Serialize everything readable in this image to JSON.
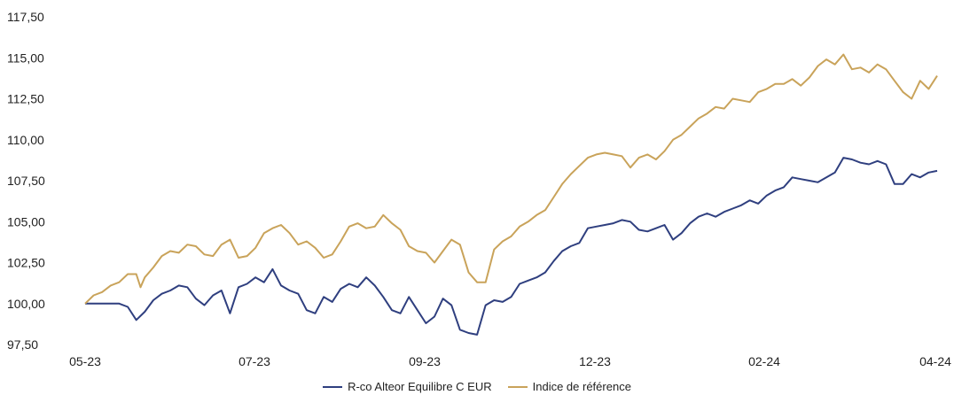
{
  "chart_data": {
    "type": "line",
    "title": "",
    "xlabel": "",
    "ylabel": "",
    "x_tick_labels": [
      "05-23",
      "07-23",
      "09-23",
      "12-23",
      "02-24",
      "04-24"
    ],
    "y_tick_labels": [
      "97,50",
      "100,00",
      "102,50",
      "105,00",
      "107,50",
      "110,00",
      "112,50",
      "115,00",
      "117,50"
    ],
    "y_ticks": [
      97.5,
      100,
      102.5,
      105,
      107.5,
      110,
      112.5,
      115,
      117.5
    ],
    "ylim": [
      97.5,
      117.5
    ],
    "x_range": [
      "05-23",
      "04-24"
    ],
    "grid": false,
    "legend_position": "bottom-center",
    "series": [
      {
        "name": "R-co Alteor Equilibre C EUR",
        "color": "#2f3f7f",
        "points": [
          [
            0,
            100.0
          ],
          [
            0.02,
            100.0
          ],
          [
            0.04,
            100.0
          ],
          [
            0.05,
            99.8
          ],
          [
            0.06,
            99.0
          ],
          [
            0.07,
            99.5
          ],
          [
            0.08,
            100.2
          ],
          [
            0.09,
            100.6
          ],
          [
            0.1,
            100.8
          ],
          [
            0.11,
            101.1
          ],
          [
            0.12,
            101.0
          ],
          [
            0.13,
            100.3
          ],
          [
            0.14,
            99.9
          ],
          [
            0.15,
            100.5
          ],
          [
            0.16,
            100.8
          ],
          [
            0.17,
            99.4
          ],
          [
            0.18,
            101.0
          ],
          [
            0.19,
            101.2
          ],
          [
            0.2,
            101.6
          ],
          [
            0.21,
            101.3
          ],
          [
            0.22,
            102.1
          ],
          [
            0.23,
            101.1
          ],
          [
            0.24,
            100.8
          ],
          [
            0.25,
            100.6
          ],
          [
            0.26,
            99.6
          ],
          [
            0.27,
            99.4
          ],
          [
            0.28,
            100.4
          ],
          [
            0.29,
            100.1
          ],
          [
            0.3,
            100.9
          ],
          [
            0.31,
            101.2
          ],
          [
            0.32,
            101.0
          ],
          [
            0.33,
            101.6
          ],
          [
            0.34,
            101.1
          ],
          [
            0.35,
            100.4
          ],
          [
            0.36,
            99.6
          ],
          [
            0.37,
            99.4
          ],
          [
            0.38,
            100.4
          ],
          [
            0.39,
            99.6
          ],
          [
            0.4,
            98.8
          ],
          [
            0.41,
            99.2
          ],
          [
            0.42,
            100.3
          ],
          [
            0.43,
            99.9
          ],
          [
            0.44,
            98.4
          ],
          [
            0.45,
            98.2
          ],
          [
            0.46,
            98.1
          ],
          [
            0.47,
            99.9
          ],
          [
            0.48,
            100.2
          ],
          [
            0.49,
            100.1
          ],
          [
            0.5,
            100.4
          ],
          [
            0.51,
            101.2
          ],
          [
            0.52,
            101.4
          ],
          [
            0.53,
            101.6
          ],
          [
            0.54,
            101.9
          ],
          [
            0.55,
            102.6
          ],
          [
            0.56,
            103.2
          ],
          [
            0.57,
            103.5
          ],
          [
            0.58,
            103.7
          ],
          [
            0.59,
            104.6
          ],
          [
            0.6,
            104.7
          ],
          [
            0.61,
            104.8
          ],
          [
            0.62,
            104.9
          ],
          [
            0.63,
            105.1
          ],
          [
            0.64,
            105.0
          ],
          [
            0.65,
            104.5
          ],
          [
            0.66,
            104.4
          ],
          [
            0.67,
            104.6
          ],
          [
            0.68,
            104.8
          ],
          [
            0.69,
            103.9
          ],
          [
            0.7,
            104.3
          ],
          [
            0.71,
            104.9
          ],
          [
            0.72,
            105.3
          ],
          [
            0.73,
            105.5
          ],
          [
            0.74,
            105.3
          ],
          [
            0.75,
            105.6
          ],
          [
            0.76,
            105.8
          ],
          [
            0.77,
            106.0
          ],
          [
            0.78,
            106.3
          ],
          [
            0.79,
            106.1
          ],
          [
            0.8,
            106.6
          ],
          [
            0.81,
            106.9
          ],
          [
            0.82,
            107.1
          ],
          [
            0.83,
            107.7
          ],
          [
            0.84,
            107.6
          ],
          [
            0.85,
            107.5
          ],
          [
            0.86,
            107.4
          ],
          [
            0.87,
            107.7
          ],
          [
            0.88,
            108.0
          ],
          [
            0.89,
            108.9
          ],
          [
            0.9,
            108.8
          ],
          [
            0.91,
            108.6
          ],
          [
            0.92,
            108.5
          ],
          [
            0.93,
            108.7
          ],
          [
            0.94,
            108.5
          ],
          [
            0.95,
            107.3
          ],
          [
            0.96,
            107.3
          ],
          [
            0.97,
            107.9
          ],
          [
            0.98,
            107.7
          ],
          [
            0.99,
            108.0
          ],
          [
            1.0,
            108.1
          ]
        ]
      },
      {
        "name": "Indice de référence",
        "color": "#c9a35a",
        "points": [
          [
            0,
            100.0
          ],
          [
            0.01,
            100.5
          ],
          [
            0.02,
            100.7
          ],
          [
            0.03,
            101.1
          ],
          [
            0.04,
            101.3
          ],
          [
            0.05,
            101.8
          ],
          [
            0.06,
            101.8
          ],
          [
            0.065,
            101.0
          ],
          [
            0.07,
            101.6
          ],
          [
            0.08,
            102.2
          ],
          [
            0.09,
            102.9
          ],
          [
            0.1,
            103.2
          ],
          [
            0.11,
            103.1
          ],
          [
            0.12,
            103.6
          ],
          [
            0.13,
            103.5
          ],
          [
            0.14,
            103.0
          ],
          [
            0.15,
            102.9
          ],
          [
            0.16,
            103.6
          ],
          [
            0.17,
            103.9
          ],
          [
            0.18,
            102.8
          ],
          [
            0.19,
            102.9
          ],
          [
            0.2,
            103.4
          ],
          [
            0.21,
            104.3
          ],
          [
            0.22,
            104.6
          ],
          [
            0.23,
            104.8
          ],
          [
            0.24,
            104.3
          ],
          [
            0.25,
            103.6
          ],
          [
            0.26,
            103.8
          ],
          [
            0.27,
            103.4
          ],
          [
            0.28,
            102.8
          ],
          [
            0.29,
            103.0
          ],
          [
            0.3,
            103.8
          ],
          [
            0.31,
            104.7
          ],
          [
            0.32,
            104.9
          ],
          [
            0.33,
            104.6
          ],
          [
            0.34,
            104.7
          ],
          [
            0.35,
            105.4
          ],
          [
            0.36,
            104.9
          ],
          [
            0.37,
            104.5
          ],
          [
            0.38,
            103.5
          ],
          [
            0.39,
            103.2
          ],
          [
            0.4,
            103.1
          ],
          [
            0.41,
            102.5
          ],
          [
            0.42,
            103.2
          ],
          [
            0.43,
            103.9
          ],
          [
            0.44,
            103.6
          ],
          [
            0.45,
            101.9
          ],
          [
            0.46,
            101.3
          ],
          [
            0.47,
            101.3
          ],
          [
            0.48,
            103.3
          ],
          [
            0.49,
            103.8
          ],
          [
            0.5,
            104.1
          ],
          [
            0.51,
            104.7
          ],
          [
            0.52,
            105.0
          ],
          [
            0.53,
            105.4
          ],
          [
            0.54,
            105.7
          ],
          [
            0.55,
            106.5
          ],
          [
            0.56,
            107.3
          ],
          [
            0.57,
            107.9
          ],
          [
            0.58,
            108.4
          ],
          [
            0.59,
            108.9
          ],
          [
            0.6,
            109.1
          ],
          [
            0.61,
            109.2
          ],
          [
            0.62,
            109.1
          ],
          [
            0.63,
            109.0
          ],
          [
            0.64,
            108.3
          ],
          [
            0.65,
            108.9
          ],
          [
            0.66,
            109.1
          ],
          [
            0.67,
            108.8
          ],
          [
            0.68,
            109.3
          ],
          [
            0.69,
            110.0
          ],
          [
            0.7,
            110.3
          ],
          [
            0.71,
            110.8
          ],
          [
            0.72,
            111.3
          ],
          [
            0.73,
            111.6
          ],
          [
            0.74,
            112.0
          ],
          [
            0.75,
            111.9
          ],
          [
            0.76,
            112.5
          ],
          [
            0.77,
            112.4
          ],
          [
            0.78,
            112.3
          ],
          [
            0.79,
            112.9
          ],
          [
            0.8,
            113.1
          ],
          [
            0.81,
            113.4
          ],
          [
            0.82,
            113.4
          ],
          [
            0.83,
            113.7
          ],
          [
            0.84,
            113.3
          ],
          [
            0.85,
            113.8
          ],
          [
            0.86,
            114.5
          ],
          [
            0.87,
            114.9
          ],
          [
            0.88,
            114.6
          ],
          [
            0.89,
            115.2
          ],
          [
            0.9,
            114.3
          ],
          [
            0.91,
            114.4
          ],
          [
            0.92,
            114.1
          ],
          [
            0.93,
            114.6
          ],
          [
            0.94,
            114.3
          ],
          [
            0.95,
            113.6
          ],
          [
            0.96,
            112.9
          ],
          [
            0.97,
            112.5
          ],
          [
            0.98,
            113.6
          ],
          [
            0.99,
            113.1
          ],
          [
            1.0,
            113.9
          ]
        ]
      }
    ]
  }
}
